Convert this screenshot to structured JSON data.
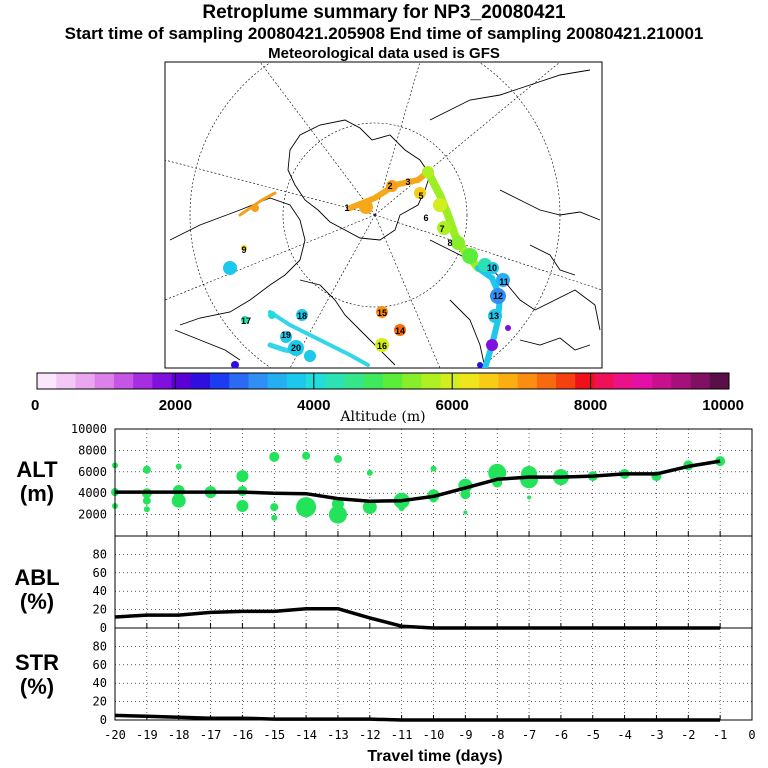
{
  "header": {
    "title": "Retroplume summary for NP3_20080421",
    "sampling": "Start time of sampling 20080421.205908     End time of sampling 20080421.210001",
    "met": "Meteorological data used is GFS"
  },
  "colors": {
    "dots": "#22e35a",
    "line": "#000000",
    "map_line": "#000000",
    "cyan_track": "#33d6e8"
  },
  "map": {
    "labels": [
      {
        "text": "1"
      },
      {
        "text": "2"
      },
      {
        "text": "3"
      },
      {
        "text": "5"
      },
      {
        "text": "6"
      },
      {
        "text": "7"
      },
      {
        "text": "8"
      },
      {
        "text": "9"
      },
      {
        "text": "10"
      },
      {
        "text": "11"
      },
      {
        "text": "12"
      },
      {
        "text": "13"
      },
      {
        "text": "14"
      },
      {
        "text": "15"
      },
      {
        "text": "16"
      },
      {
        "text": "17"
      },
      {
        "text": "18"
      },
      {
        "text": "19"
      },
      {
        "text": "20"
      }
    ]
  },
  "colorbar": {
    "ticks": [
      "0",
      "2000",
      "4000",
      "6000",
      "8000",
      "10000"
    ],
    "label": "Altitude (m)",
    "colors": [
      "#fbe6fb",
      "#f4c8f5",
      "#eaa6ef",
      "#dc80ea",
      "#c655e6",
      "#a52ee2",
      "#7f10dd",
      "#5b00d6",
      "#2f0fe0",
      "#1c3cf0",
      "#2a6af4",
      "#2f8ff5",
      "#26aef2",
      "#1cc9ec",
      "#22dcdc",
      "#2ae2b4",
      "#35e58a",
      "#3fe95e",
      "#5bed3a",
      "#86ef2a",
      "#aef022",
      "#d2ee1e",
      "#eee61a",
      "#f8cc16",
      "#fbae12",
      "#fb8e10",
      "#f86a10",
      "#f5400f",
      "#f0101a",
      "#ef1058",
      "#ec1089",
      "#e40fa8",
      "#c8108e",
      "#a6107a",
      "#821062",
      "#5a0f48"
    ]
  },
  "chart_data": [
    {
      "type": "scatter",
      "name": "ALT",
      "ylabel_line1": "ALT",
      "ylabel_line2": "(m)",
      "xlim": [
        -20,
        0
      ],
      "ylim": [
        0,
        10000
      ],
      "yticks": [
        "10000",
        "8000",
        "6000",
        "4000",
        "2000"
      ],
      "mean_line": {
        "x": [
          -20,
          -19,
          -18,
          -17,
          -16,
          -15,
          -14,
          -13,
          -12,
          -11,
          -10,
          -9,
          -8,
          -7,
          -6,
          -5,
          -4,
          -3,
          -2,
          -1
        ],
        "y": [
          4100,
          4100,
          4100,
          4100,
          4100,
          4000,
          3950,
          3500,
          3250,
          3300,
          3700,
          4500,
          5300,
          5500,
          5500,
          5600,
          5800,
          5800,
          6500,
          7000
        ]
      },
      "points": [
        {
          "x": -20,
          "y": 6600,
          "s": 3
        },
        {
          "x": -20,
          "y": 4100,
          "s": 4
        },
        {
          "x": -20,
          "y": 2800,
          "s": 3
        },
        {
          "x": -19,
          "y": 6200,
          "s": 4
        },
        {
          "x": -19,
          "y": 4000,
          "s": 5
        },
        {
          "x": -19,
          "y": 3300,
          "s": 4
        },
        {
          "x": -19,
          "y": 2500,
          "s": 3
        },
        {
          "x": -18,
          "y": 6500,
          "s": 3
        },
        {
          "x": -18,
          "y": 4200,
          "s": 6
        },
        {
          "x": -18,
          "y": 3300,
          "s": 7
        },
        {
          "x": -17,
          "y": 4100,
          "s": 6
        },
        {
          "x": -17,
          "y": 3900,
          "s": 4
        },
        {
          "x": -16,
          "y": 5600,
          "s": 6
        },
        {
          "x": -16,
          "y": 4200,
          "s": 5
        },
        {
          "x": -16,
          "y": 2800,
          "s": 6
        },
        {
          "x": -15,
          "y": 7400,
          "s": 5
        },
        {
          "x": -15,
          "y": 2700,
          "s": 4
        },
        {
          "x": -15,
          "y": 1700,
          "s": 3
        },
        {
          "x": -14,
          "y": 7500,
          "s": 4
        },
        {
          "x": -14,
          "y": 2700,
          "s": 10
        },
        {
          "x": -13,
          "y": 7200,
          "s": 4
        },
        {
          "x": -13,
          "y": 3000,
          "s": 6
        },
        {
          "x": -13,
          "y": 2000,
          "s": 9
        },
        {
          "x": -12,
          "y": 5900,
          "s": 3
        },
        {
          "x": -12,
          "y": 2700,
          "s": 7
        },
        {
          "x": -11,
          "y": 3300,
          "s": 8
        },
        {
          "x": -11,
          "y": 2600,
          "s": 3
        },
        {
          "x": -10,
          "y": 6300,
          "s": 3
        },
        {
          "x": -10,
          "y": 3800,
          "s": 6
        },
        {
          "x": -10,
          "y": 3500,
          "s": 4
        },
        {
          "x": -9,
          "y": 4700,
          "s": 7
        },
        {
          "x": -9,
          "y": 3900,
          "s": 5
        },
        {
          "x": -9,
          "y": 2200,
          "s": 2
        },
        {
          "x": -8,
          "y": 5900,
          "s": 9
        },
        {
          "x": -8,
          "y": 5000,
          "s": 5
        },
        {
          "x": -7,
          "y": 5800,
          "s": 8
        },
        {
          "x": -7,
          "y": 5300,
          "s": 9
        },
        {
          "x": -7,
          "y": 3600,
          "s": 2
        },
        {
          "x": -6,
          "y": 5500,
          "s": 8
        },
        {
          "x": -5,
          "y": 5600,
          "s": 5
        },
        {
          "x": -4,
          "y": 5800,
          "s": 5
        },
        {
          "x": -3,
          "y": 5600,
          "s": 5
        },
        {
          "x": -2,
          "y": 6600,
          "s": 5
        },
        {
          "x": -1,
          "y": 7000,
          "s": 5
        }
      ]
    },
    {
      "type": "line",
      "name": "ABL",
      "ylabel_line1": "ABL",
      "ylabel_line2": "(%)",
      "xlim": [
        -20,
        0
      ],
      "ylim": [
        0,
        100
      ],
      "yticks": [
        "80",
        "60",
        "40",
        "20",
        "0"
      ],
      "x": [
        -20,
        -19,
        -18,
        -17,
        -16,
        -15,
        -14,
        -13,
        -12,
        -11,
        -10,
        -9,
        -8,
        -7,
        -6,
        -5,
        -4,
        -3,
        -2,
        -1
      ],
      "y": [
        12,
        14,
        14,
        17,
        18,
        18,
        21,
        21,
        11,
        2,
        0,
        0,
        0,
        0,
        0,
        0,
        0,
        0,
        0,
        0
      ]
    },
    {
      "type": "line",
      "name": "STR",
      "ylabel_line1": "STR",
      "ylabel_line2": "(%)",
      "xlim": [
        -20,
        0
      ],
      "ylim": [
        0,
        100
      ],
      "yticks": [
        "80",
        "60",
        "40",
        "20",
        "0"
      ],
      "x": [
        -20,
        -19,
        -18,
        -17,
        -16,
        -15,
        -14,
        -13,
        -12,
        -11,
        -10,
        -9,
        -8,
        -7,
        -6,
        -5,
        -4,
        -3,
        -2,
        -1
      ],
      "y": [
        5,
        4,
        3,
        2,
        2,
        1,
        1,
        1,
        1,
        0,
        0,
        0,
        0,
        0,
        0,
        0,
        0,
        0,
        0,
        0
      ],
      "xticks": [
        "-20",
        "-19",
        "-18",
        "-17",
        "-16",
        "-15",
        "-14",
        "-13",
        "-12",
        "-11",
        "-10",
        "-9",
        "-8",
        "-7",
        "-6",
        "-5",
        "-4",
        "-3",
        "-2",
        "-1",
        "0"
      ],
      "xlabel": "Travel time (days)"
    }
  ]
}
